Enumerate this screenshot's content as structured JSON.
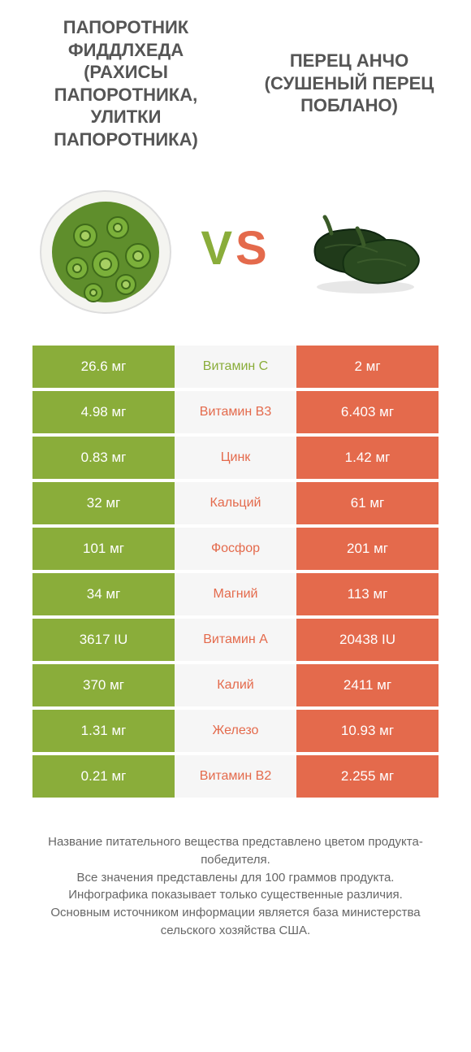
{
  "infographic": {
    "type": "comparison-table",
    "background_color": "#ffffff",
    "left_color": "#8aad3a",
    "right_color": "#e46a4c",
    "mid_bg_color": "#f6f6f6",
    "title_left": "ПАПОРОТНИК ФИДДЛХЕДА (РАХИСЫ ПАПОРОТНИКА, УЛИТКИ ПАПОРОТНИКА)",
    "title_right": "ПЕРЕЦ АНЧО (СУШЕНЫЙ ПЕРЕЦ ПОБЛАНО)",
    "vs_v": "V",
    "vs_s": "S",
    "title_fontsize": 22,
    "value_fontsize": 17,
    "nutrient_fontsize": 16,
    "footer_fontsize": 15,
    "rows": [
      {
        "left": "26.6 мг",
        "mid": "Витамин C",
        "right": "2 мг",
        "winner": "left"
      },
      {
        "left": "4.98 мг",
        "mid": "Витамин B3",
        "right": "6.403 мг",
        "winner": "right"
      },
      {
        "left": "0.83 мг",
        "mid": "Цинк",
        "right": "1.42 мг",
        "winner": "right"
      },
      {
        "left": "32 мг",
        "mid": "Кальций",
        "right": "61 мг",
        "winner": "right"
      },
      {
        "left": "101 мг",
        "mid": "Фосфор",
        "right": "201 мг",
        "winner": "right"
      },
      {
        "left": "34 мг",
        "mid": "Магний",
        "right": "113 мг",
        "winner": "right"
      },
      {
        "left": "3617 IU",
        "mid": "Витамин A",
        "right": "20438 IU",
        "winner": "right"
      },
      {
        "left": "370 мг",
        "mid": "Калий",
        "right": "2411 мг",
        "winner": "right"
      },
      {
        "left": "1.31 мг",
        "mid": "Железо",
        "right": "10.93 мг",
        "winner": "right"
      },
      {
        "left": "0.21 мг",
        "mid": "Витамин B2",
        "right": "2.255 мг",
        "winner": "right"
      }
    ],
    "footer": "Название питательного вещества представлено цветом продукта-победителя.\nВсе значения представлены для 100 граммов продукта.\nИнфографика показывает только существенные различия.\nОсновным источником информации является база министерства сельского хозяйства США."
  }
}
